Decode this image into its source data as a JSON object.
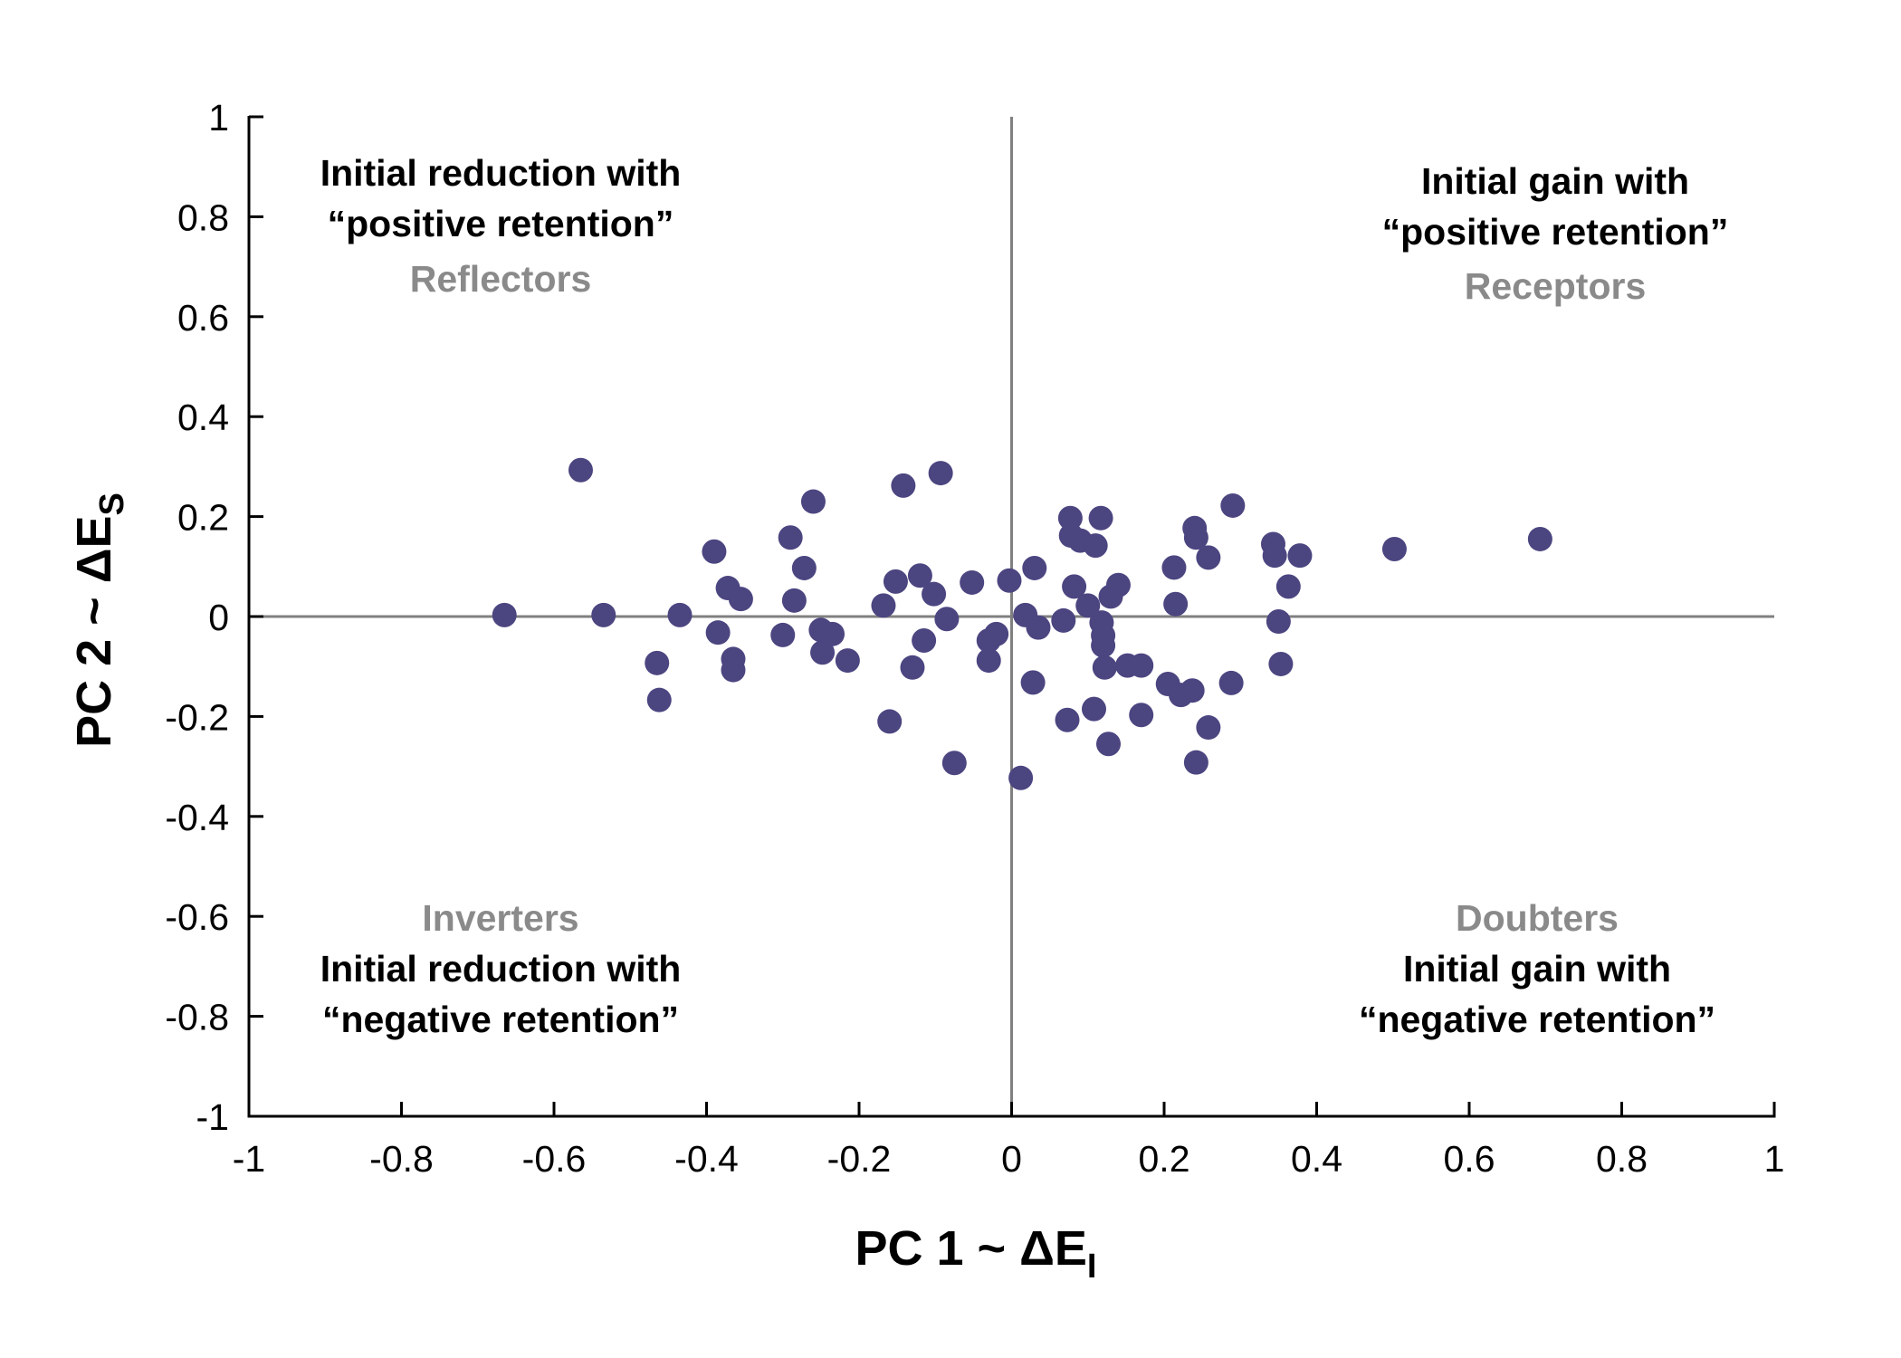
{
  "chart_data": {
    "type": "scatter",
    "title": "",
    "xlabel_main": "PC 1 ~ ΔE",
    "xlabel_sub": "I",
    "ylabel_main": "PC 2 ~ ΔE",
    "ylabel_sub": "S",
    "xlim": [
      -1,
      1
    ],
    "ylim": [
      -1,
      1
    ],
    "xticks": [
      -1,
      -0.8,
      -0.6,
      -0.4,
      -0.2,
      0,
      0.2,
      0.4,
      0.6,
      0.8,
      1
    ],
    "yticks": [
      -1,
      -0.8,
      -0.6,
      -0.4,
      -0.2,
      0,
      0.2,
      0.4,
      0.6,
      0.8,
      1
    ],
    "xtick_labels": [
      "-1",
      "-0.8",
      "-0.6",
      "-0.4",
      "-0.2",
      "0",
      "0.2",
      "0.4",
      "0.6",
      "0.8",
      "1"
    ],
    "ytick_labels": [
      "-1",
      "-0.8",
      "-0.6",
      "-0.4",
      "-0.2",
      "0",
      "0.2",
      "0.4",
      "0.6",
      "0.8",
      "1"
    ],
    "grid": false,
    "zero_lines": true,
    "marker_color": "#4b4580",
    "zero_line_color": "#808080",
    "quadrant_name_color": "#8a8a8a",
    "quadrants": {
      "top_left": {
        "line1": "Initial reduction with",
        "line2": "“positive retention”",
        "name": "Reflectors"
      },
      "top_right": {
        "line1": "Initial gain with",
        "line2": "“positive retention”",
        "name": "Receptors"
      },
      "bottom_left": {
        "name": "Inverters",
        "line1": "Initial reduction with",
        "line2": "“negative retention”"
      },
      "bottom_right": {
        "name": "Doubters",
        "line1": "Initial gain with",
        "line2": "“negative retention”"
      }
    },
    "points": [
      {
        "x": -0.665,
        "y": 0.003
      },
      {
        "x": -0.565,
        "y": 0.293
      },
      {
        "x": -0.535,
        "y": 0.003
      },
      {
        "x": -0.465,
        "y": -0.093
      },
      {
        "x": -0.462,
        "y": -0.167
      },
      {
        "x": -0.435,
        "y": 0.003
      },
      {
        "x": -0.39,
        "y": 0.13
      },
      {
        "x": -0.385,
        "y": -0.032
      },
      {
        "x": -0.372,
        "y": 0.057
      },
      {
        "x": -0.365,
        "y": -0.085
      },
      {
        "x": -0.365,
        "y": -0.107
      },
      {
        "x": -0.355,
        "y": 0.035
      },
      {
        "x": -0.3,
        "y": -0.037
      },
      {
        "x": -0.29,
        "y": 0.158
      },
      {
        "x": -0.285,
        "y": 0.032
      },
      {
        "x": -0.272,
        "y": 0.097
      },
      {
        "x": -0.26,
        "y": 0.23
      },
      {
        "x": -0.25,
        "y": -0.027
      },
      {
        "x": -0.248,
        "y": -0.072
      },
      {
        "x": -0.235,
        "y": -0.035
      },
      {
        "x": -0.215,
        "y": -0.088
      },
      {
        "x": -0.168,
        "y": 0.022
      },
      {
        "x": -0.16,
        "y": -0.21
      },
      {
        "x": -0.152,
        "y": 0.07
      },
      {
        "x": -0.142,
        "y": 0.262
      },
      {
        "x": -0.13,
        "y": -0.102
      },
      {
        "x": -0.12,
        "y": 0.082
      },
      {
        "x": -0.115,
        "y": -0.048
      },
      {
        "x": -0.102,
        "y": 0.045
      },
      {
        "x": -0.093,
        "y": 0.287
      },
      {
        "x": -0.085,
        "y": -0.005
      },
      {
        "x": -0.075,
        "y": -0.293
      },
      {
        "x": -0.052,
        "y": 0.068
      },
      {
        "x": -0.03,
        "y": -0.048
      },
      {
        "x": -0.03,
        "y": -0.088
      },
      {
        "x": -0.02,
        "y": -0.035
      },
      {
        "x": -0.003,
        "y": 0.072
      },
      {
        "x": 0.012,
        "y": -0.323
      },
      {
        "x": 0.018,
        "y": 0.003
      },
      {
        "x": 0.028,
        "y": -0.132
      },
      {
        "x": 0.03,
        "y": 0.097
      },
      {
        "x": 0.035,
        "y": -0.022
      },
      {
        "x": 0.068,
        "y": -0.008
      },
      {
        "x": 0.073,
        "y": -0.207
      },
      {
        "x": 0.077,
        "y": 0.197
      },
      {
        "x": 0.078,
        "y": 0.162
      },
      {
        "x": 0.082,
        "y": 0.06
      },
      {
        "x": 0.09,
        "y": 0.152
      },
      {
        "x": 0.1,
        "y": 0.022
      },
      {
        "x": 0.108,
        "y": -0.185
      },
      {
        "x": 0.11,
        "y": 0.142
      },
      {
        "x": 0.117,
        "y": 0.197
      },
      {
        "x": 0.118,
        "y": -0.012
      },
      {
        "x": 0.12,
        "y": -0.038
      },
      {
        "x": 0.12,
        "y": -0.058
      },
      {
        "x": 0.122,
        "y": -0.102
      },
      {
        "x": 0.127,
        "y": -0.255
      },
      {
        "x": 0.13,
        "y": 0.04
      },
      {
        "x": 0.14,
        "y": 0.063
      },
      {
        "x": 0.152,
        "y": -0.098
      },
      {
        "x": 0.17,
        "y": -0.098
      },
      {
        "x": 0.17,
        "y": -0.197
      },
      {
        "x": 0.205,
        "y": -0.135
      },
      {
        "x": 0.213,
        "y": 0.098
      },
      {
        "x": 0.215,
        "y": 0.025
      },
      {
        "x": 0.222,
        "y": -0.157
      },
      {
        "x": 0.237,
        "y": -0.148
      },
      {
        "x": 0.24,
        "y": 0.177
      },
      {
        "x": 0.242,
        "y": 0.158
      },
      {
        "x": 0.242,
        "y": -0.292
      },
      {
        "x": 0.258,
        "y": 0.118
      },
      {
        "x": 0.258,
        "y": -0.222
      },
      {
        "x": 0.288,
        "y": -0.133
      },
      {
        "x": 0.29,
        "y": 0.222
      },
      {
        "x": 0.343,
        "y": 0.145
      },
      {
        "x": 0.345,
        "y": 0.122
      },
      {
        "x": 0.35,
        "y": -0.01
      },
      {
        "x": 0.353,
        "y": -0.095
      },
      {
        "x": 0.363,
        "y": 0.06
      },
      {
        "x": 0.378,
        "y": 0.122
      },
      {
        "x": 0.502,
        "y": 0.135
      },
      {
        "x": 0.693,
        "y": 0.155
      }
    ]
  }
}
